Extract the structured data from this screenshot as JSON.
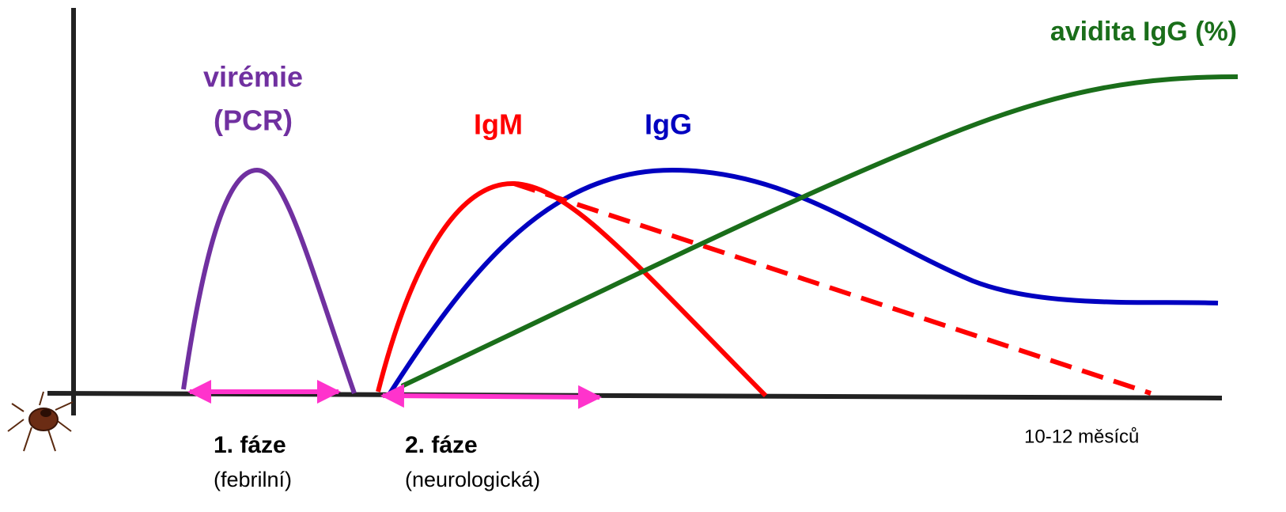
{
  "labels": {
    "viremia": [
      "virémie",
      "(PCR)"
    ],
    "igm": "IgM",
    "igg": "IgG",
    "avidity": "avidita IgG (%)"
  },
  "phases": [
    {
      "title": "1. fáze",
      "subtitle": "(febrilní)"
    },
    {
      "title": "2. fáze",
      "subtitle": "(neurologická)"
    }
  ],
  "x_axis_note": "10-12 měsíců"
}
